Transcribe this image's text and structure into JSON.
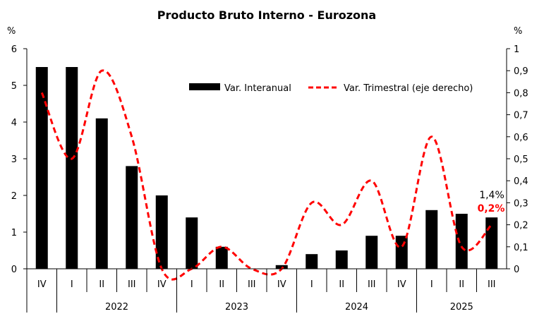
{
  "chart_data": {
    "type": "bar",
    "title": "Producto Bruto Interno - Eurozona",
    "y_left_label": "%",
    "y_right_label": "%",
    "y_left_range": [
      0,
      6
    ],
    "y_right_range": [
      0,
      1
    ],
    "y_left_ticks": [
      "0",
      "1",
      "2",
      "3",
      "4",
      "5",
      "6"
    ],
    "y_right_ticks": [
      "0",
      "0,1",
      "0,2",
      "0,3",
      "0,4",
      "0,5",
      "0,6",
      "0,7",
      "0,8",
      "0,9",
      "1"
    ],
    "categories": [
      "IV",
      "I",
      "II",
      "III",
      "IV",
      "I",
      "II",
      "III",
      "IV",
      "I",
      "II",
      "III",
      "IV",
      "I",
      "II",
      "III"
    ],
    "year_groups": [
      {
        "label": "2022",
        "start": 1,
        "count": 4
      },
      {
        "label": "2023",
        "start": 5,
        "count": 4
      },
      {
        "label": "2024",
        "start": 9,
        "count": 4
      },
      {
        "label": "2025",
        "start": 13,
        "count": 3
      }
    ],
    "series": [
      {
        "name": "Var. Interanual",
        "type": "bar",
        "axis": "left",
        "color": "#000000",
        "values": [
          5.5,
          5.5,
          4.1,
          2.8,
          2.0,
          1.4,
          0.6,
          0.0,
          0.1,
          0.4,
          0.5,
          0.9,
          0.9,
          1.6,
          1.5,
          1.4
        ]
      },
      {
        "name": "Var. Trimestral (eje derecho)",
        "type": "line",
        "style": "dashed",
        "axis": "right",
        "color": "#ff0000",
        "values": [
          0.8,
          0.5,
          0.9,
          0.6,
          0.0,
          0.0,
          0.1,
          0.0,
          0.0,
          0.3,
          0.2,
          0.4,
          0.1,
          0.6,
          0.1,
          0.2
        ]
      }
    ],
    "annotations": [
      {
        "text": "1,4%",
        "color": "#000000"
      },
      {
        "text": "0,2%",
        "color": "#ff0000"
      }
    ],
    "legend_position": "top-right"
  }
}
